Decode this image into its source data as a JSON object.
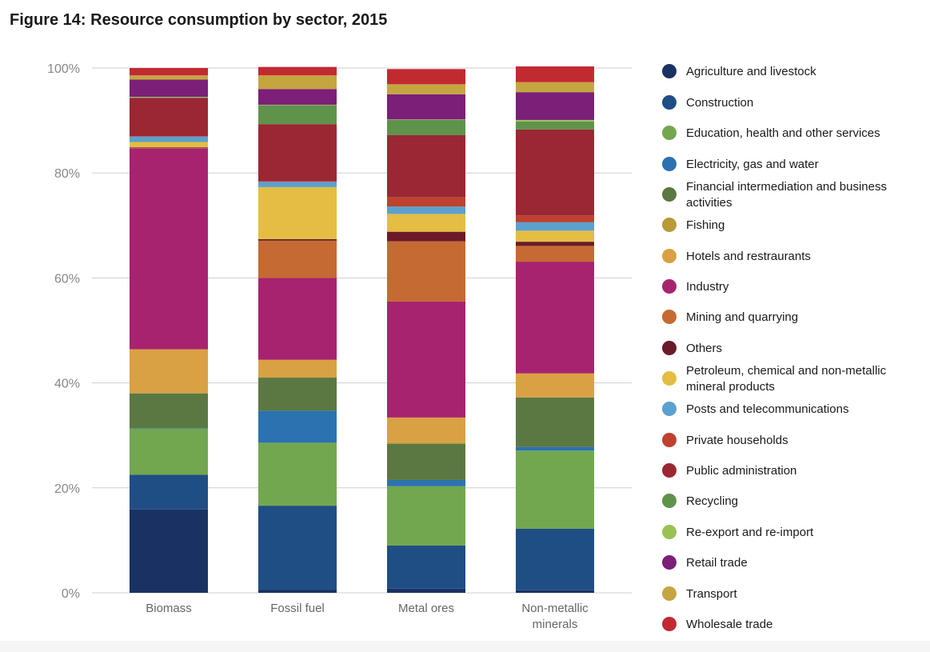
{
  "chart_data": {
    "type": "bar",
    "stacked": true,
    "title": "Figure 14: Resource consumption by sector, 2015",
    "xlabel": "",
    "ylabel": "",
    "ylim": [
      0,
      100
    ],
    "y_ticks": [
      "0%",
      "20%",
      "40%",
      "60%",
      "80%",
      "100%"
    ],
    "y_tick_values": [
      0,
      20,
      40,
      60,
      80,
      100
    ],
    "grid": true,
    "legend_position": "right",
    "categories": [
      [
        "Biomass"
      ],
      [
        "Fossil fuel"
      ],
      [
        "Metal ores"
      ],
      [
        "Non-metallic",
        "minerals"
      ]
    ],
    "series": [
      {
        "name": "Agriculture and livestock",
        "color": "#1a3263",
        "values": [
          15.9,
          0.6,
          0.8,
          0.5
        ]
      },
      {
        "name": "Construction",
        "color": "#1f4e85",
        "values": [
          6.6,
          16.0,
          8.2,
          11.7
        ]
      },
      {
        "name": "Education, health and other services",
        "color": "#72a74f",
        "values": [
          8.8,
          12.0,
          11.3,
          14.9
        ]
      },
      {
        "name": "Electricity, gas and water",
        "color": "#2b72b0",
        "values": [
          0.1,
          6.1,
          1.2,
          0.7
        ]
      },
      {
        "name": "Financial intermediation and business activities",
        "color": "#5c7842",
        "values": [
          6.6,
          6.3,
          6.9,
          9.4
        ]
      },
      {
        "name": "Fishing",
        "color": "#b89a38",
        "values": [
          0.1,
          0.1,
          0.3,
          0.1
        ]
      },
      {
        "name": "Hotels and restraurants",
        "color": "#d9a143",
        "values": [
          8.3,
          3.3,
          4.7,
          4.5
        ]
      },
      {
        "name": "Industry",
        "color": "#a8236f",
        "values": [
          38.3,
          15.6,
          22.1,
          21.3
        ]
      },
      {
        "name": "Mining and quarrying",
        "color": "#c56a32",
        "values": [
          0.1,
          7.1,
          11.5,
          3.0
        ]
      },
      {
        "name": "Others",
        "color": "#6b1a2a",
        "values": [
          0.1,
          0.3,
          1.8,
          0.8
        ]
      },
      {
        "name": "Petroleum, chemical and non-metallic mineral products",
        "color": "#e4bd42",
        "values": [
          1.0,
          9.9,
          3.4,
          2.1
        ]
      },
      {
        "name": "Posts and telecommunications",
        "color": "#5aa1cf",
        "values": [
          1.0,
          1.0,
          1.4,
          1.6
        ]
      },
      {
        "name": "Private households",
        "color": "#bf412f",
        "values": [
          0.1,
          0.1,
          1.8,
          1.3
        ]
      },
      {
        "name": "Public administration",
        "color": "#9b2733",
        "values": [
          7.3,
          10.9,
          11.8,
          16.4
        ]
      },
      {
        "name": "Recycling",
        "color": "#5f934c",
        "values": [
          0.1,
          3.6,
          2.9,
          1.5
        ]
      },
      {
        "name": "Re-export and re-import",
        "color": "#9bc054",
        "values": [
          0.1,
          0.1,
          0.1,
          0.3
        ]
      },
      {
        "name": "Retail trade",
        "color": "#7c1f79",
        "values": [
          3.3,
          3.0,
          4.8,
          5.3
        ]
      },
      {
        "name": "Transport",
        "color": "#c5a540",
        "values": [
          0.8,
          2.6,
          1.9,
          1.9
        ]
      },
      {
        "name": "Wholesale trade",
        "color": "#c22a31",
        "values": [
          1.4,
          1.6,
          2.9,
          3.0
        ]
      }
    ]
  }
}
